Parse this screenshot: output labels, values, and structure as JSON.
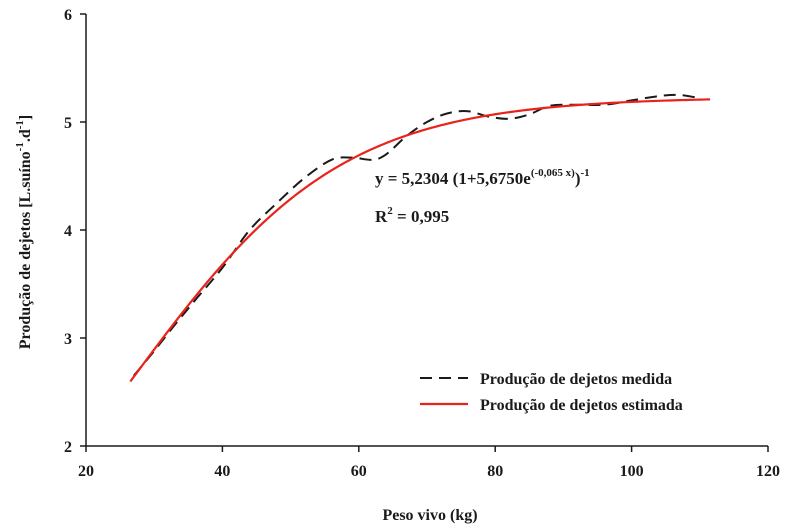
{
  "chart_data": {
    "type": "line",
    "xlabel": "Peso vivo (kg)",
    "ylabel_main": "Produção de dejetos [L.suíno",
    "ylabel_sup1": "-1",
    "ylabel_mid": ".d",
    "ylabel_sup2": "-1",
    "ylabel_end": "]",
    "xlim": [
      20,
      120
    ],
    "ylim": [
      2,
      6
    ],
    "x_ticks": [
      "20",
      "40",
      "60",
      "80",
      "100",
      "120"
    ],
    "y_ticks": [
      "2",
      "3",
      "4",
      "5",
      "6"
    ],
    "grid": false,
    "legend_position": "bottom-right",
    "equation": {
      "main": "y = 5,2304 (1+5,6750e",
      "exponent": "(-0,065 x)",
      "tail": ")",
      "tail_sup": "-1"
    },
    "r2": {
      "prefix": "R",
      "sup": "2",
      "suffix": " = 0,995"
    },
    "series": [
      {
        "name": "Produção  de dejetos medida",
        "style": "dashed",
        "color": "#1a1a1a",
        "x": [
          27,
          30,
          33,
          36,
          40,
          44,
          48,
          52,
          56,
          59,
          62,
          64,
          67,
          70,
          73,
          76,
          79,
          82,
          85,
          88,
          92,
          96,
          100,
          104,
          107,
          110
        ],
        "y": [
          2.65,
          2.88,
          3.12,
          3.35,
          3.65,
          4.0,
          4.25,
          4.48,
          4.65,
          4.67,
          4.65,
          4.7,
          4.87,
          5.0,
          5.08,
          5.1,
          5.05,
          5.03,
          5.07,
          5.15,
          5.16,
          5.16,
          5.2,
          5.24,
          5.25,
          5.22
        ]
      },
      {
        "name": "Produção de dejetos estimada",
        "style": "solid",
        "color": "#e8231a",
        "function": "logistic",
        "a": 5.2304,
        "b": 5.675,
        "k": 0.065,
        "x_range": [
          26.5,
          111.5
        ]
      }
    ]
  }
}
